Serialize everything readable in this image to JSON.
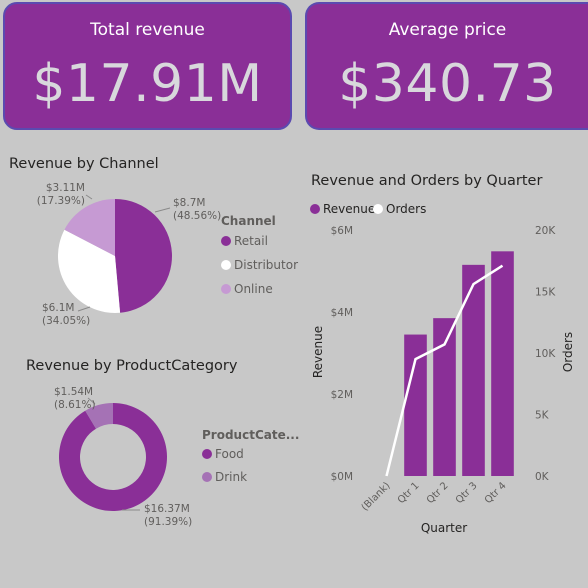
{
  "kpis": {
    "total_revenue": {
      "label": "Total revenue",
      "value": "$17.91M"
    },
    "average_price": {
      "label": "Average price",
      "value": "$340.73"
    }
  },
  "colors": {
    "primary": "#8a2f97",
    "secondary": "#c69ad3",
    "white": "#ffffff",
    "drink": "#a572b5",
    "background": "#c8c8c8"
  },
  "charts": {
    "channel": {
      "title": "Revenue by Channel",
      "legend_title": "Channel",
      "chart_data": {
        "type": "pie",
        "title": "Revenue by Channel",
        "legend_title": "Channel",
        "slices": [
          {
            "name": "Retail",
            "value": 8.7,
            "label": "$8.7M",
            "pct": "(48.56%)",
            "color": "#8a2f97"
          },
          {
            "name": "Distributor",
            "value": 6.1,
            "label": "$6.1M",
            "pct": "(34.05%)",
            "color": "#ffffff"
          },
          {
            "name": "Online",
            "value": 3.11,
            "label": "$3.11M",
            "pct": "(17.39%)",
            "color": "#c69ad3"
          }
        ]
      }
    },
    "category": {
      "title": "Revenue by ProductCategory",
      "legend_title": "ProductCate...",
      "chart_data": {
        "type": "pie",
        "title": "Revenue by ProductCategory",
        "legend_title": "ProductCate...",
        "slices": [
          {
            "name": "Food",
            "value": 16.37,
            "label": "$16.37M",
            "pct": "(91.39%)",
            "color": "#8a2f97"
          },
          {
            "name": "Drink",
            "value": 1.54,
            "label": "$1.54M",
            "pct": "(8.61%)",
            "color": "#a572b5"
          }
        ]
      }
    },
    "quarter": {
      "title": "Revenue and Orders by Quarter",
      "chart_data": {
        "type": "bar",
        "title": "Revenue and Orders by Quarter",
        "xlabel": "Quarter",
        "ylabel": "Revenue",
        "y2label": "Orders",
        "categories": [
          "(Blank)",
          "Qtr 1",
          "Qtr 2",
          "Qtr 3",
          "Qtr 4"
        ],
        "ylim": [
          0,
          6000000
        ],
        "y2lim": [
          0,
          20000
        ],
        "yticks": [
          "$0M",
          "$2M",
          "$4M",
          "$6M"
        ],
        "y2ticks": [
          "0K",
          "5K",
          "10K",
          "15K",
          "20K"
        ],
        "series": [
          {
            "name": "Revenue",
            "type": "bar",
            "color": "#8a2f97",
            "values": [
              0,
              3450000,
              3850000,
              5150000,
              5480000
            ]
          },
          {
            "name": "Orders",
            "type": "line",
            "color": "#ffffff",
            "values": [
              0,
              9500,
              10700,
              15600,
              17100
            ]
          }
        ]
      }
    }
  }
}
